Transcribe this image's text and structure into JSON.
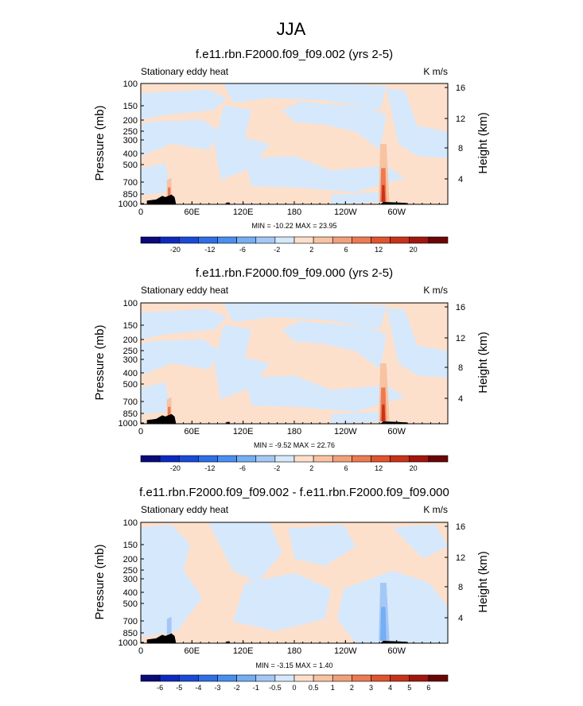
{
  "main_title": "JJA",
  "panels": [
    {
      "title": "f.e11.rbn.F2000.f09_f09.002 (yrs 2-5)",
      "left_label": "Stationary eddy heat",
      "right_label": "K m/s",
      "y_label": "Pressure (mb)",
      "y2_label": "Height (km)",
      "min_max_text": "MIN = -10.22  MAX =  23.95",
      "colorbar_labels": [
        "-20",
        "-12",
        "-6",
        "-2",
        "2",
        "6",
        "12",
        "20"
      ]
    },
    {
      "title": "f.e11.rbn.F2000.f09_f09.000 (yrs 2-5)",
      "left_label": "Stationary eddy heat",
      "right_label": "K m/s",
      "y_label": "Pressure (mb)",
      "y2_label": "Height (km)",
      "min_max_text": "MIN =  -9.52  MAX =  22.76",
      "colorbar_labels": [
        "-20",
        "-12",
        "-6",
        "-2",
        "2",
        "6",
        "12",
        "20"
      ]
    },
    {
      "title": "f.e11.rbn.F2000.f09_f09.002 - f.e11.rbn.F2000.f09_f09.000",
      "left_label": "Stationary eddy heat",
      "right_label": "K m/s",
      "y_label": "Pressure (mb)",
      "y2_label": "Height (km)",
      "min_max_text": "MIN =  -3.15  MAX =   1.40",
      "colorbar_labels": [
        "-6",
        "-5",
        "-4",
        "-3",
        "-2",
        "-1",
        "-0.5",
        "0",
        "0.5",
        "1",
        "2",
        "3",
        "4",
        "5",
        "6"
      ]
    }
  ],
  "chart_data": [
    {
      "type": "heatmap",
      "title": "f.e11.rbn.F2000.f09_f09.002 (yrs 2-5)",
      "variable": "Stationary eddy heat",
      "units": "K m/s",
      "xlabel": "",
      "ylabel": "Pressure (mb)",
      "y2label": "Height (km)",
      "x_ticks": [
        "0",
        "60E",
        "120E",
        "180",
        "120W",
        "60W"
      ],
      "y_ticks": [
        "100",
        "150",
        "200",
        "250",
        "300",
        "400",
        "500",
        "700",
        "850",
        "1000"
      ],
      "y2_ticks": [
        "4",
        "8",
        "12",
        "16"
      ],
      "levels": [
        -20,
        -16,
        -12,
        -8,
        -6,
        -4,
        -2,
        0,
        2,
        4,
        6,
        8,
        12,
        16,
        20,
        24
      ],
      "min": -10.22,
      "max": 23.95
    },
    {
      "type": "heatmap",
      "title": "f.e11.rbn.F2000.f09_f09.000 (yrs 2-5)",
      "variable": "Stationary eddy heat",
      "units": "K m/s",
      "xlabel": "",
      "ylabel": "Pressure (mb)",
      "y2label": "Height (km)",
      "x_ticks": [
        "0",
        "60E",
        "120E",
        "180",
        "120W",
        "60W"
      ],
      "y_ticks": [
        "100",
        "150",
        "200",
        "250",
        "300",
        "400",
        "500",
        "700",
        "850",
        "1000"
      ],
      "y2_ticks": [
        "4",
        "8",
        "12",
        "16"
      ],
      "levels": [
        -20,
        -16,
        -12,
        -8,
        -6,
        -4,
        -2,
        0,
        2,
        4,
        6,
        8,
        12,
        16,
        20,
        24
      ],
      "min": -9.52,
      "max": 22.76
    },
    {
      "type": "heatmap",
      "title": "f.e11.rbn.F2000.f09_f09.002 - f.e11.rbn.F2000.f09_f09.000",
      "variable": "Stationary eddy heat",
      "units": "K m/s",
      "xlabel": "",
      "ylabel": "Pressure (mb)",
      "y2label": "Height (km)",
      "x_ticks": [
        "0",
        "60E",
        "120E",
        "180",
        "120W",
        "60W"
      ],
      "y_ticks": [
        "100",
        "150",
        "200",
        "250",
        "300",
        "400",
        "500",
        "700",
        "850",
        "1000"
      ],
      "y2_ticks": [
        "4",
        "8",
        "12",
        "16"
      ],
      "levels": [
        -6,
        -5,
        -4,
        -3,
        -2,
        -1,
        -0.5,
        0,
        0.5,
        1,
        2,
        3,
        4,
        5,
        6
      ],
      "min": -3.15,
      "max": 1.4
    }
  ],
  "colors": {
    "positive_light": "#fde0cc",
    "negative_light": "#d6e8fb",
    "terrain": "#000000",
    "colorbar": [
      "#0a0a7a",
      "#0d2ac0",
      "#1a4ad8",
      "#2f6ee8",
      "#4a8ef0",
      "#74aef4",
      "#a4c8f6",
      "#d6e8fb",
      "#fde0cc",
      "#f8c3a2",
      "#f2a07a",
      "#ec7a52",
      "#e0542e",
      "#c8321a",
      "#a3160e",
      "#6b0606"
    ],
    "colorbar_diff": [
      "#0a0a7a",
      "#0d2ac0",
      "#1a4ad8",
      "#2f6ee8",
      "#4a8ef0",
      "#74aef4",
      "#a4c8f6",
      "#d6e8fb",
      "#fde0cc",
      "#f8c3a2",
      "#f2a07a",
      "#ec7a52",
      "#e0542e",
      "#c8321a",
      "#a3160e",
      "#6b0606"
    ]
  }
}
